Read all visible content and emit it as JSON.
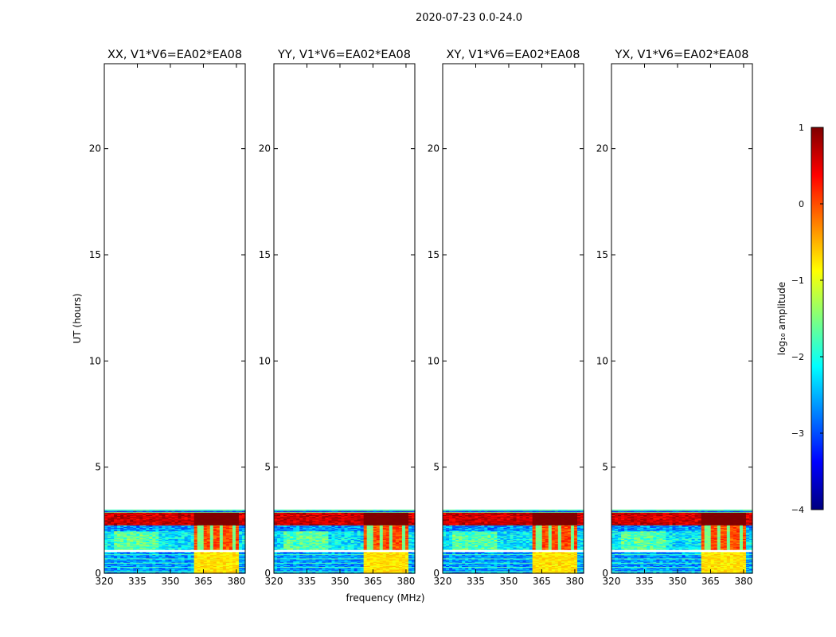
{
  "figure": {
    "suptitle": "2020-07-23 0.0-24.0",
    "xlabel": "frequency (MHz)",
    "ylabel": "UT (hours)"
  },
  "colorbar": {
    "label": "log₁₀ amplitude",
    "range": [
      -4,
      1
    ],
    "tick_values": [
      1,
      0,
      -1,
      -2,
      -3,
      -4
    ],
    "tick_labels": [
      "1",
      "0",
      "−1",
      "−2",
      "−3",
      "−4"
    ],
    "colormap": "jet",
    "colors": [
      "#00007f",
      "#0000ff",
      "#007fff",
      "#00ffff",
      "#7fff7f",
      "#ffff00",
      "#ff7f00",
      "#ff0000",
      "#7f0000"
    ]
  },
  "chart_data": [
    {
      "type": "heatmap",
      "title": "XX, V1*V6=EA02*EA08",
      "xlim": [
        320,
        384
      ],
      "ylim": [
        0,
        24
      ],
      "x_tick_values": [
        320,
        335,
        350,
        365,
        380
      ],
      "x_tick_labels": [
        "320",
        "335",
        "350",
        "365",
        "380"
      ],
      "y_tick_values": [
        0,
        5,
        10,
        15,
        20
      ],
      "y_tick_labels": [
        "0",
        "5",
        "10",
        "15",
        "20"
      ],
      "data_time_range_hours": [
        0,
        3
      ],
      "gap_hours": [
        1.0,
        1.1
      ],
      "bright_band_hours": [
        2.3,
        2.9
      ],
      "rfi_band_mhz": [
        361,
        381
      ],
      "rfi_channels_mhz": [
        363.5,
        368.5,
        373.5,
        378.5
      ]
    },
    {
      "type": "heatmap",
      "title": "YY, V1*V6=EA02*EA08",
      "xlim": [
        320,
        384
      ],
      "ylim": [
        0,
        24
      ],
      "x_tick_values": [
        320,
        335,
        350,
        365,
        380
      ],
      "x_tick_labels": [
        "320",
        "335",
        "350",
        "365",
        "380"
      ],
      "y_tick_values": [
        0,
        5,
        10,
        15,
        20
      ],
      "y_tick_labels": [
        "0",
        "5",
        "10",
        "15",
        "20"
      ],
      "data_time_range_hours": [
        0,
        3
      ],
      "gap_hours": [
        1.0,
        1.1
      ],
      "bright_band_hours": [
        2.3,
        2.9
      ],
      "rfi_band_mhz": [
        361,
        381
      ],
      "rfi_channels_mhz": [
        363.5,
        368.5,
        373.5,
        378.5
      ]
    },
    {
      "type": "heatmap",
      "title": "XY, V1*V6=EA02*EA08",
      "xlim": [
        320,
        384
      ],
      "ylim": [
        0,
        24
      ],
      "x_tick_values": [
        320,
        335,
        350,
        365,
        380
      ],
      "x_tick_labels": [
        "320",
        "335",
        "350",
        "365",
        "380"
      ],
      "y_tick_values": [
        0,
        5,
        10,
        15,
        20
      ],
      "y_tick_labels": [
        "0",
        "5",
        "10",
        "15",
        "20"
      ],
      "data_time_range_hours": [
        0,
        3
      ],
      "gap_hours": [
        1.0,
        1.1
      ],
      "bright_band_hours": [
        2.3,
        2.9
      ],
      "rfi_band_mhz": [
        361,
        381
      ],
      "rfi_channels_mhz": [
        363.5,
        368.5,
        373.5,
        378.5
      ]
    },
    {
      "type": "heatmap",
      "title": "YX, V1*V6=EA02*EA08",
      "xlim": [
        320,
        384
      ],
      "ylim": [
        0,
        24
      ],
      "x_tick_values": [
        320,
        335,
        350,
        365,
        380
      ],
      "x_tick_labels": [
        "320",
        "335",
        "350",
        "365",
        "380"
      ],
      "y_tick_values": [
        0,
        5,
        10,
        15,
        20
      ],
      "y_tick_labels": [
        "0",
        "5",
        "10",
        "15",
        "20"
      ],
      "data_time_range_hours": [
        0,
        3
      ],
      "gap_hours": [
        1.0,
        1.1
      ],
      "bright_band_hours": [
        2.3,
        2.9
      ],
      "rfi_band_mhz": [
        361,
        381
      ],
      "rfi_channels_mhz": [
        363.5,
        368.5,
        373.5,
        378.5
      ]
    }
  ]
}
